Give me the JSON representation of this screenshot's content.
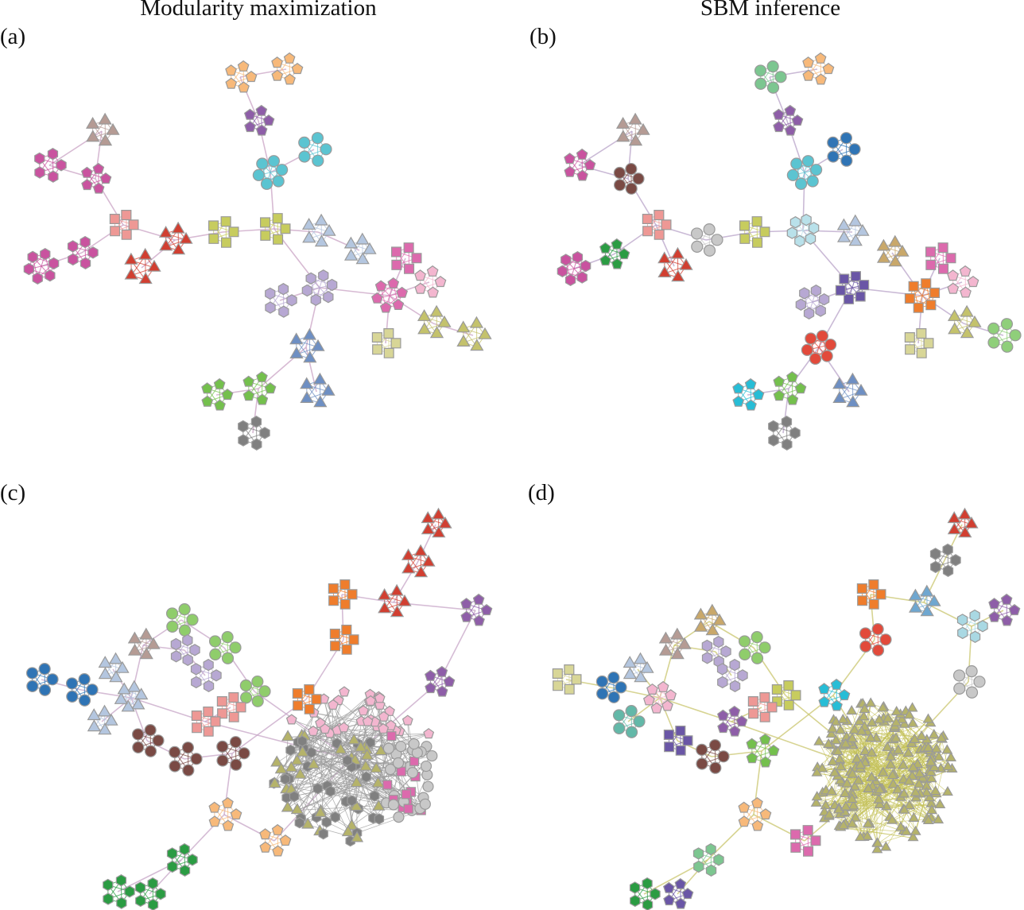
{
  "column_titles": {
    "left": "Modularity maximization",
    "right": "SBM inference"
  },
  "panels": [
    {
      "label": "(a)"
    },
    {
      "label": "(b)"
    },
    {
      "label": "(c)"
    },
    {
      "label": "(d)"
    }
  ],
  "palette": {
    "orange_light": "#f7b97a",
    "purple": "#8e5ea8",
    "cyan": "#5bc4d1",
    "brown_grey": "#b59b94",
    "magenta": "#c9539f",
    "salmon": "#ee9895",
    "red": "#d13f31",
    "olive": "#c7cc5e",
    "light_blue": "#b4c6df",
    "lavender": "#b7a8d3",
    "pink": "#dc6aad",
    "pink_light": "#f3b6cf",
    "khaki": "#c4c26c",
    "pale_yellow": "#d8d697",
    "blue": "#6e8fc3",
    "green_light": "#8fcd6b",
    "green": "#74c04d",
    "grey": "#808080",
    "grey_light": "#c8c8c8",
    "mint": "#7cc690",
    "navy": "#2f74b5",
    "brown": "#7a4a44",
    "green_dark": "#2b9c43",
    "tan": "#c9a86a",
    "indigo": "#6a56a6",
    "dark_orange": "#ef7d2c",
    "cyan_bright": "#27bdd6",
    "sage": "#8fcf7a",
    "teal": "#63b8a8",
    "red_bright": "#e24a3b",
    "olive_green": "#b5b36a"
  }
}
